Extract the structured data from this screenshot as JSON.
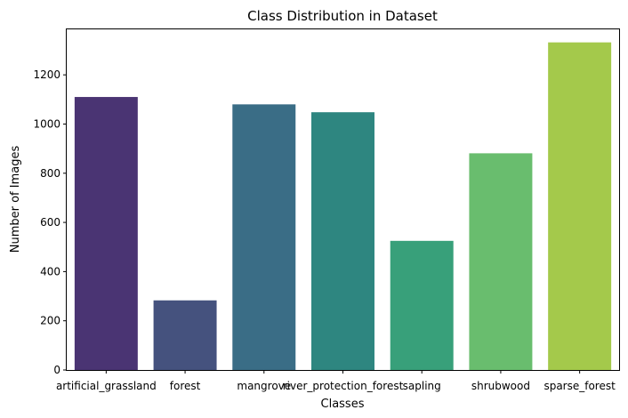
{
  "chart_data": {
    "type": "bar",
    "title": "Class Distribution in Dataset",
    "xlabel": "Classes",
    "ylabel": "Number of Images",
    "categories": [
      "artificial_grassland",
      "forest",
      "mangrove",
      "river_protection_forest",
      "sapling",
      "shrubwood",
      "sparse_forest"
    ],
    "values": [
      1110,
      283,
      1080,
      1048,
      525,
      881,
      1332
    ],
    "colors": [
      "#4a3473",
      "#45527e",
      "#3a6d86",
      "#2e8680",
      "#38a07a",
      "#69bd6e",
      "#a4c94b"
    ],
    "ylim": [
      0,
      1385
    ],
    "yticks": [
      0,
      200,
      400,
      600,
      800,
      1000,
      1200
    ],
    "grid": false,
    "legend": "none"
  }
}
